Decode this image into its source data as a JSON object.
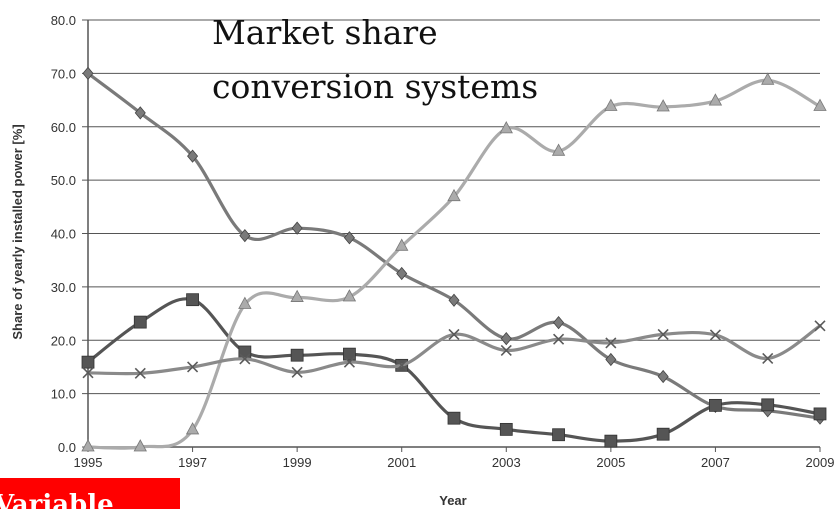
{
  "overlay": {
    "title_line1": "Market share",
    "title_line2": "conversion systems",
    "red_label": "Variable"
  },
  "chart_data": {
    "type": "line",
    "title": "",
    "xlabel": "Year",
    "ylabel": "Share of yearly installed power [%]",
    "x": [
      1995,
      1996,
      1997,
      1998,
      1999,
      2000,
      2001,
      2002,
      2003,
      2004,
      2005,
      2006,
      2007,
      2008,
      2009
    ],
    "xticks": [
      "1995",
      "1997",
      "1999",
      "2001",
      "2003",
      "2005",
      "2007",
      "2009"
    ],
    "yticks": [
      "0.0",
      "10.0",
      "20.0",
      "30.0",
      "40.0",
      "50.0",
      "60.0",
      "70.0",
      "80.0"
    ],
    "ylim": [
      0,
      80
    ],
    "grid": "horizontal",
    "series": [
      {
        "marker": "diamond",
        "color": "#7a7a7a",
        "values": [
          70.0,
          62.6,
          54.5,
          39.6,
          41.0,
          39.2,
          32.5,
          27.5,
          20.3,
          23.3,
          16.4,
          13.2,
          7.6,
          6.8,
          5.4
        ]
      },
      {
        "marker": "square",
        "color": "#555555",
        "values": [
          15.9,
          23.4,
          27.6,
          17.8,
          17.2,
          17.4,
          15.3,
          5.4,
          3.3,
          2.3,
          1.1,
          2.4,
          7.8,
          7.9,
          6.2
        ]
      },
      {
        "marker": "triangle",
        "color": "#ababab",
        "values": [
          0.0,
          0.0,
          3.2,
          26.7,
          28.0,
          28.1,
          37.6,
          46.9,
          59.6,
          55.4,
          63.8,
          63.7,
          64.8,
          68.7,
          63.8
        ]
      },
      {
        "marker": "x",
        "color": "#8a8a8a",
        "values": [
          13.9,
          13.8,
          15.0,
          16.5,
          14.0,
          15.9,
          15.3,
          21.1,
          18.1,
          20.2,
          19.5,
          21.1,
          21.0,
          16.6,
          22.7
        ]
      }
    ]
  }
}
